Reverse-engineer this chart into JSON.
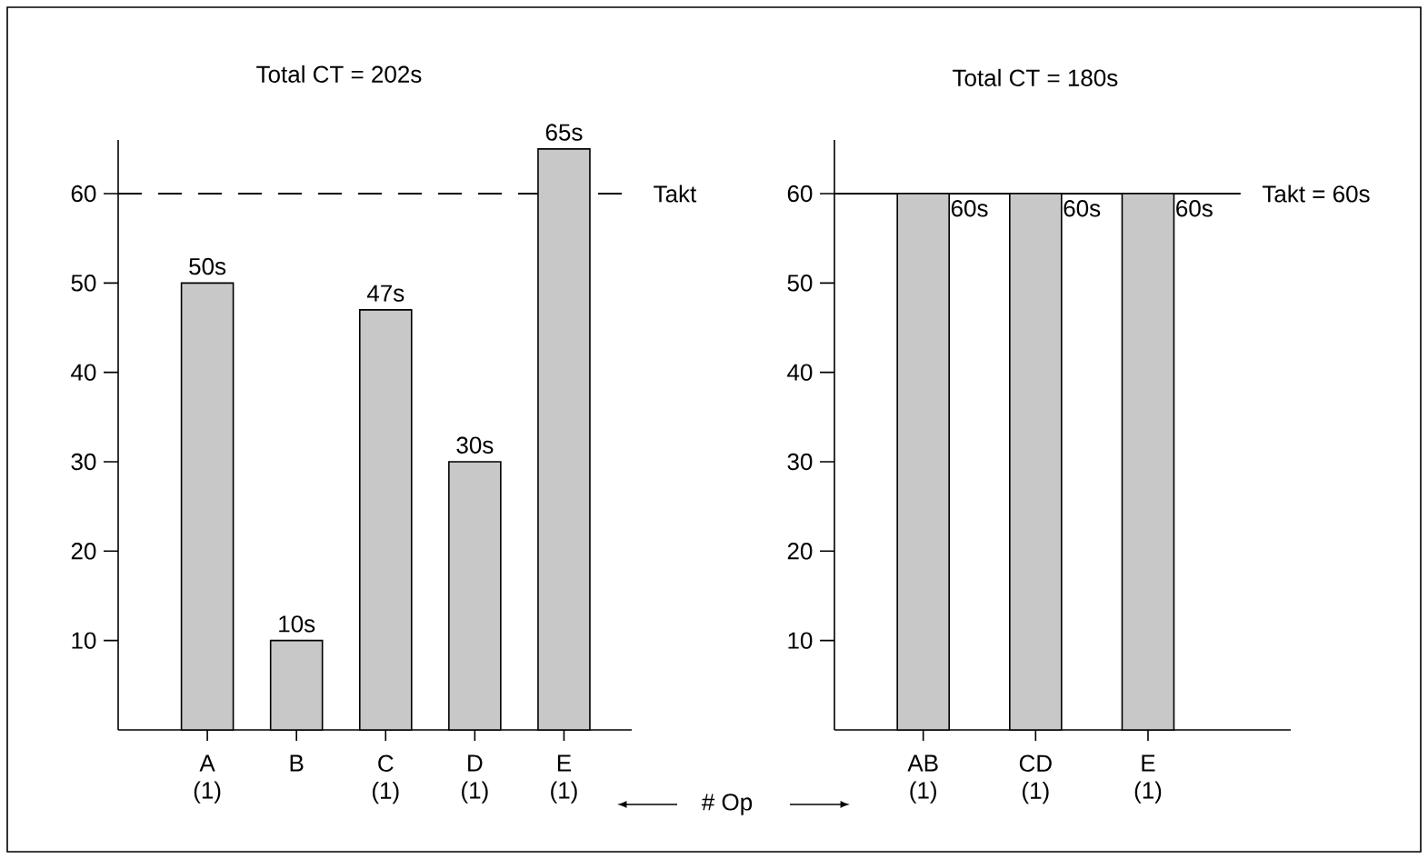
{
  "chart_data": [
    {
      "type": "bar",
      "title": "Total CT = 202s",
      "categories": [
        "A (1)",
        "B",
        "C (1)",
        "D (1)",
        "E (1)"
      ],
      "values": [
        50,
        10,
        47,
        30,
        65
      ],
      "value_labels": [
        "50s",
        "10s",
        "47s",
        "30s",
        "65s"
      ],
      "color": "#c8c8c8",
      "ylim": [
        0,
        66
      ],
      "yticks": [
        10,
        20,
        30,
        40,
        50,
        60
      ],
      "ref_lines": [
        {
          "axis": "y",
          "value": 60,
          "label": "Takt",
          "line_style": "dashed"
        }
      ],
      "annotations": [
        "# Op"
      ]
    },
    {
      "type": "bar",
      "title": "Total CT = 180s",
      "categories": [
        "AB (1)",
        "CD (1)",
        "E (1)"
      ],
      "values": [
        60,
        60,
        60
      ],
      "value_labels": [
        "60s",
        "60s",
        "60s"
      ],
      "color": "#c8c8c8",
      "ylim": [
        0,
        66
      ],
      "yticks": [
        10,
        20,
        30,
        40,
        50,
        60
      ],
      "ref_lines": [
        {
          "axis": "y",
          "value": 60,
          "label": "Takt = 60s",
          "line_style": "solid"
        }
      ]
    }
  ]
}
